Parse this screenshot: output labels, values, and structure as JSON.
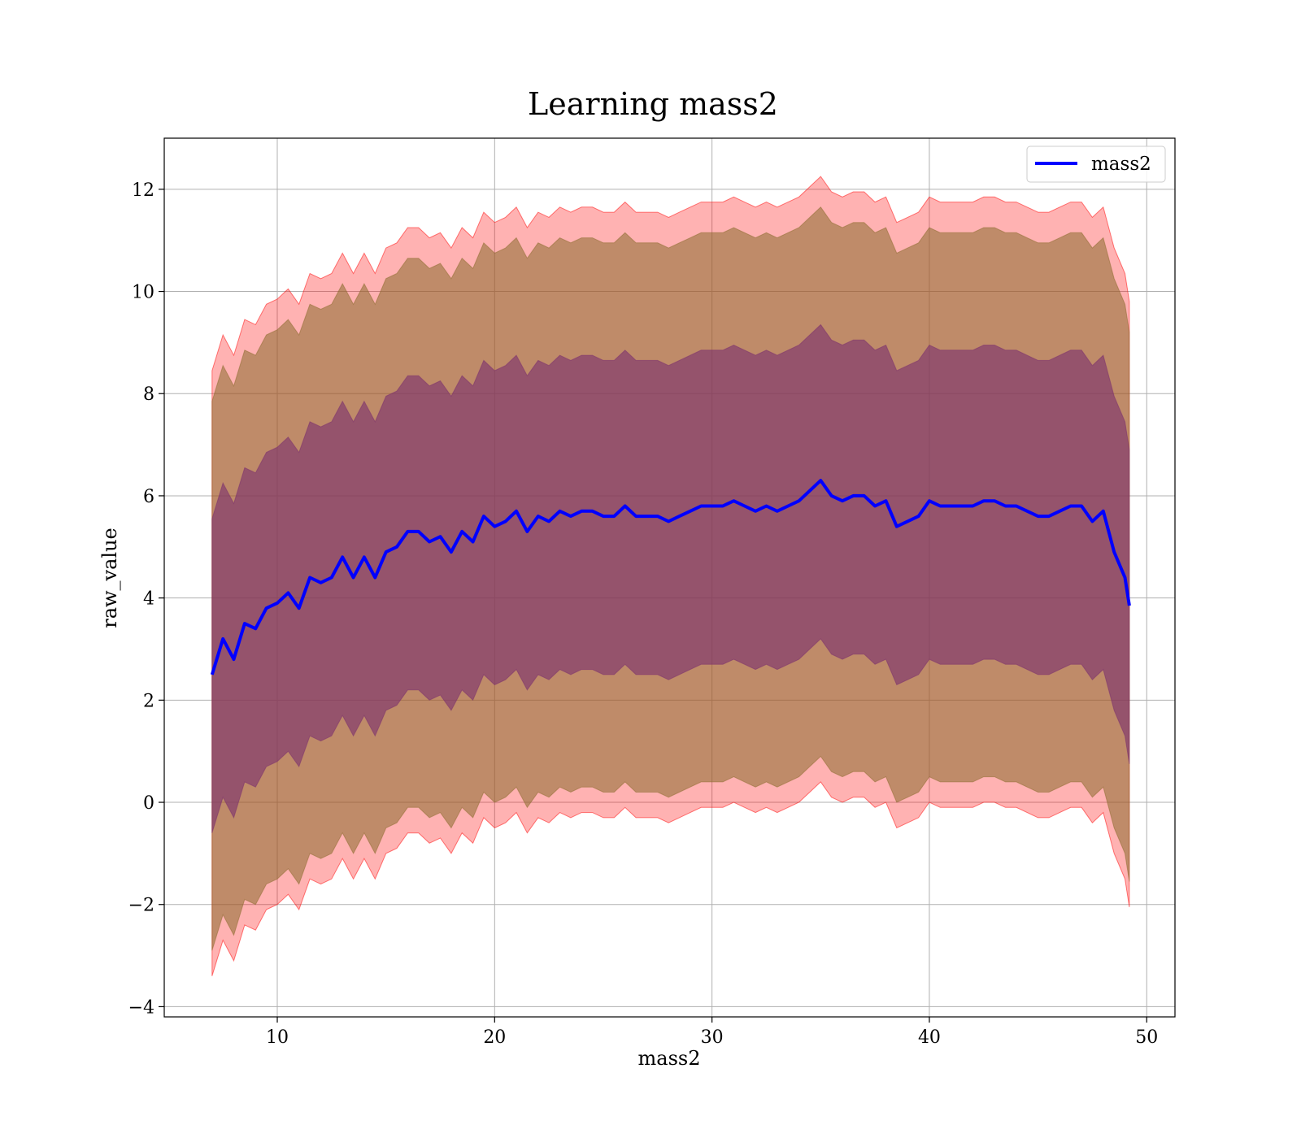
{
  "chart_data": {
    "type": "area",
    "title": "Learning mass2",
    "xlabel": "mass2",
    "ylabel": "raw_value",
    "xlim": [
      4.8,
      51.3
    ],
    "ylim": [
      -4.2,
      13.0
    ],
    "xticks": [
      10,
      20,
      30,
      40,
      50
    ],
    "yticks": [
      -4,
      -2,
      0,
      2,
      4,
      6,
      8,
      10,
      12
    ],
    "grid": true,
    "legend": {
      "position": "top-right",
      "entries": [
        "mass2"
      ]
    },
    "colors": {
      "line": "#0000ff",
      "band_outer": "#ff0000",
      "band_middle": "#8b6b2e",
      "band_inner": "#7a2e6e",
      "grid": "#b0b0b0"
    },
    "series": [
      {
        "name": "mass2",
        "x": [
          7.0,
          7.5,
          8.0,
          8.5,
          9.0,
          9.5,
          10.0,
          10.5,
          11.0,
          11.5,
          12.0,
          12.5,
          13.0,
          13.5,
          14.0,
          14.5,
          15.0,
          15.5,
          16.0,
          16.5,
          17.0,
          17.5,
          18.0,
          18.5,
          19.0,
          19.5,
          20.0,
          20.5,
          21.0,
          21.5,
          22.0,
          22.5,
          23.0,
          23.5,
          24.0,
          24.5,
          25.0,
          25.5,
          26.0,
          26.5,
          27.0,
          27.5,
          28.0,
          28.5,
          29.0,
          29.5,
          30.0,
          30.5,
          31.0,
          31.5,
          32.0,
          32.5,
          33.0,
          33.5,
          34.0,
          34.5,
          35.0,
          35.5,
          36.0,
          36.5,
          37.0,
          37.5,
          38.0,
          38.5,
          39.0,
          39.5,
          40.0,
          40.5,
          41.0,
          41.5,
          42.0,
          42.5,
          43.0,
          43.5,
          44.0,
          44.5,
          45.0,
          45.5,
          46.0,
          46.5,
          47.0,
          47.5,
          48.0,
          48.5,
          49.0,
          49.2
        ],
        "y": [
          2.5,
          3.2,
          2.8,
          3.5,
          3.4,
          3.8,
          3.9,
          4.1,
          3.8,
          4.4,
          4.3,
          4.4,
          4.8,
          4.4,
          4.8,
          4.4,
          4.9,
          5.0,
          5.3,
          5.3,
          5.1,
          5.2,
          4.9,
          5.3,
          5.1,
          5.6,
          5.4,
          5.5,
          5.7,
          5.3,
          5.6,
          5.5,
          5.7,
          5.6,
          5.7,
          5.7,
          5.6,
          5.6,
          5.8,
          5.6,
          5.6,
          5.6,
          5.5,
          5.6,
          5.7,
          5.8,
          5.8,
          5.8,
          5.9,
          5.8,
          5.7,
          5.8,
          5.7,
          5.8,
          5.9,
          6.1,
          6.3,
          6.0,
          5.9,
          6.0,
          6.0,
          5.8,
          5.9,
          5.4,
          5.5,
          5.6,
          5.9,
          5.8,
          5.8,
          5.8,
          5.8,
          5.9,
          5.9,
          5.8,
          5.8,
          5.7,
          5.6,
          5.6,
          5.7,
          5.8,
          5.8,
          5.5,
          5.7,
          4.9,
          4.4,
          3.85
        ]
      }
    ],
    "bands": [
      {
        "role": "outer",
        "lower_offset": -5.9,
        "upper_offset": 5.95,
        "fill": "#ff0000",
        "opacity": 0.3
      },
      {
        "role": "middle",
        "lower_offset": -5.4,
        "upper_offset": 5.35,
        "fill": "#8b6b2e",
        "opacity": 0.55
      },
      {
        "role": "inner",
        "lower_offset": -3.1,
        "upper_offset": 3.05,
        "fill": "#7a2e6e",
        "opacity": 0.6
      }
    ]
  }
}
